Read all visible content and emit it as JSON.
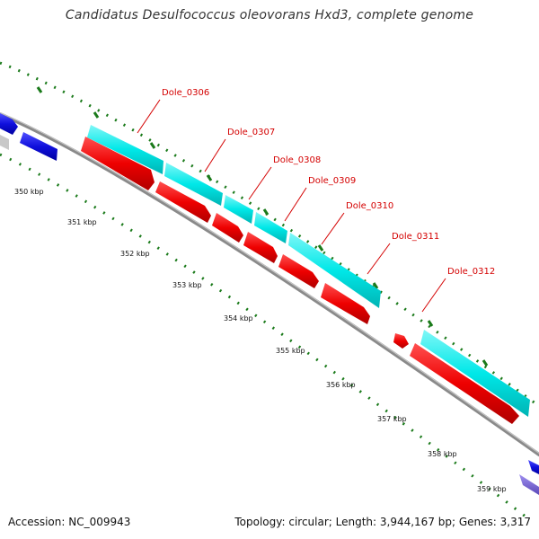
{
  "title": "Candidatus Desulfococcus oleovorans Hxd3, complete genome",
  "footer": {
    "accession": "Accession: NC_009943",
    "summary": "Topology: circular; Length: 3,944,167 bp; Genes: 3,317"
  },
  "colors": {
    "backbone": "#8a8a8a",
    "tick": "#1a7a1a",
    "cds_forward": "#00e8e8",
    "cds_reverse": "#ee0000",
    "label": "#d40000",
    "neighbor_gene": "#1010dd",
    "neighbor_gene_alt": "#7060d0"
  },
  "genes": [
    {
      "name": "Dole_0306"
    },
    {
      "name": "Dole_0307"
    },
    {
      "name": "Dole_0308"
    },
    {
      "name": "Dole_0309"
    },
    {
      "name": "Dole_0310"
    },
    {
      "name": "Dole_0311"
    },
    {
      "name": "Dole_0312"
    }
  ],
  "ticks": [
    "350 kbp",
    "351 kbp",
    "352 kbp",
    "353 kbp",
    "354 kbp",
    "355 kbp",
    "356 kbp",
    "357 kbp",
    "358 kbp",
    "359 kbp"
  ]
}
